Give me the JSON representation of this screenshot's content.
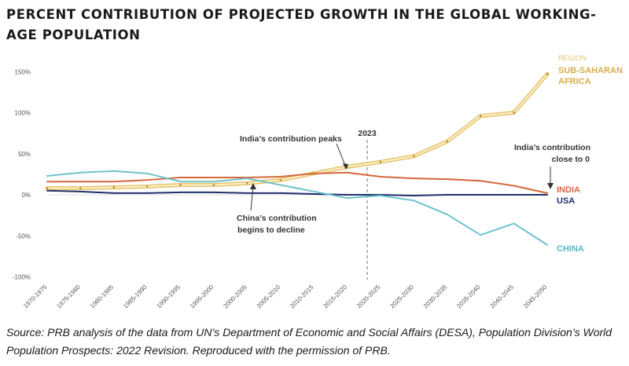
{
  "title": "PERCENT CONTRIBUTION OF PROJECTED GROWTH IN THE GLOBAL WORKING-AGE POPULATION",
  "source": "Source: PRB analysis of the data from UN’s Department of Economic and Social Affairs (DESA), Population Division’s World Population Prospects: 2022 Revision. Reproduced with the permission of PRB.",
  "chart_data": {
    "type": "line",
    "categories": [
      "1970-1975",
      "1975-1980",
      "1980-1985",
      "1985-1990",
      "1990-1995",
      "1995-2000",
      "2000-2005",
      "2005-2010",
      "2010-2015",
      "2015-2020",
      "2020-2025",
      "2025-2030",
      "2030-2035",
      "2035-2040",
      "2040-2045",
      "2045-2050"
    ],
    "y_ticks": [
      "150%",
      "100%",
      "50%",
      "0%",
      "-50%",
      "-100%"
    ],
    "ylim": [
      -100,
      150
    ],
    "grid": false,
    "legend_title": "REGION",
    "series": [
      {
        "name": "SUB-SAHARAN AFRICA",
        "color": "#e6c36a",
        "values": [
          8,
          8,
          9,
          10,
          12,
          12,
          14,
          18,
          26,
          34,
          40,
          47,
          65,
          96,
          100,
          147
        ]
      },
      {
        "name": "INDIA",
        "color": "#d4673c",
        "values": [
          16,
          16,
          16,
          18,
          21,
          21,
          21,
          22,
          26,
          27,
          22,
          20,
          19,
          17,
          11,
          2
        ]
      },
      {
        "name": "USA",
        "color": "#1f2f6b",
        "values": [
          5,
          4,
          2,
          2,
          3,
          3,
          2,
          2,
          1,
          0,
          0,
          -1,
          0,
          0,
          0,
          0
        ]
      },
      {
        "name": "CHINA",
        "color": "#6ec3cc",
        "values": [
          23,
          27,
          29,
          26,
          16,
          16,
          20,
          12,
          4,
          -4,
          -1,
          -7,
          -24,
          -49,
          -35,
          -61
        ]
      }
    ],
    "reference_line": {
      "label": "2023",
      "position": 9.6
    },
    "annotations": {
      "india_peak": "India’s contribution peaks",
      "india_zero_line1": "India’s contribution",
      "india_zero_line2": "close to 0",
      "china_decline_line1": "China’s contribution",
      "china_decline_line2": "begins to decline"
    },
    "series_labels": {
      "ssa_line1": "SUB-SAHARAN",
      "ssa_line2": "AFRICA",
      "india": "INDIA",
      "usa": "USA",
      "china": "CHINA"
    }
  }
}
